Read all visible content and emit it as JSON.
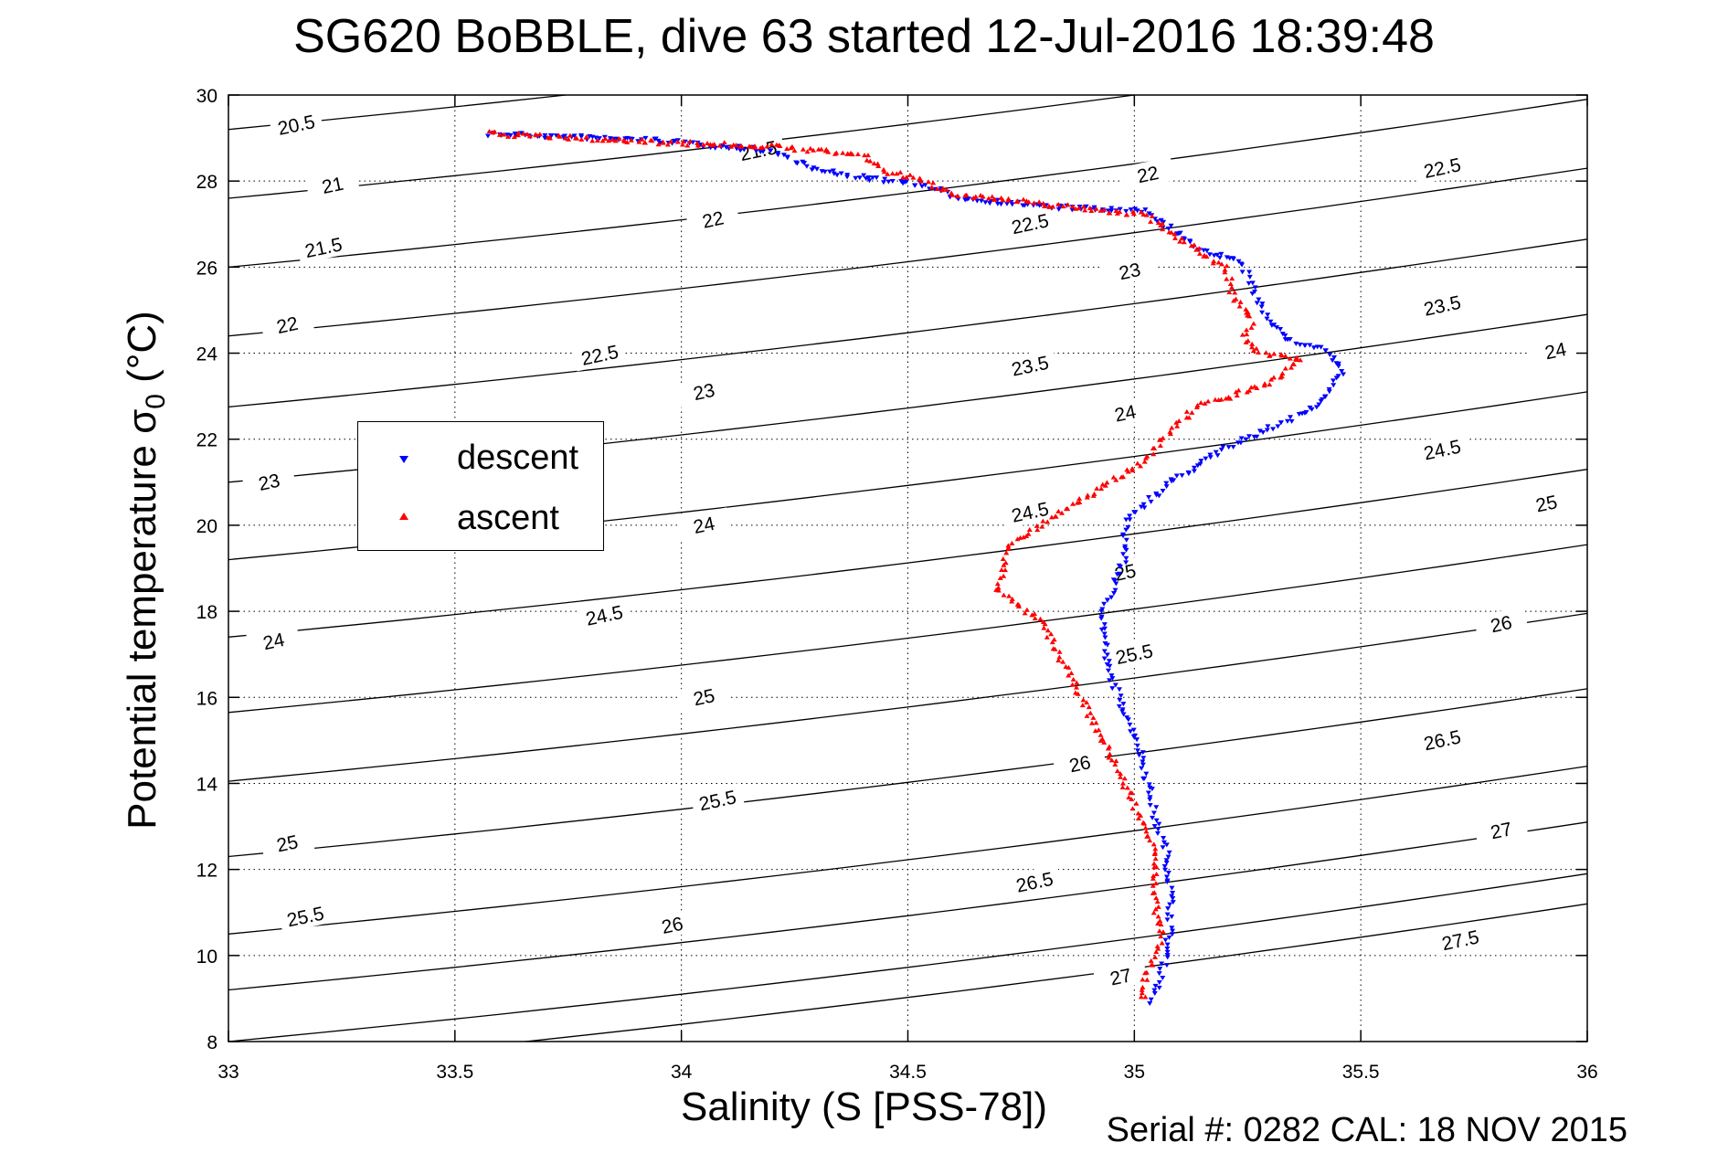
{
  "header": {
    "title": "SG620 BoBBLE, dive 63 started 12-Jul-2016 18:39:48"
  },
  "axes": {
    "xlabel": "Salinity (S [PSS-78])",
    "ylabel_main": "Potential temperature σ",
    "ylabel_sub": "0",
    "ylabel_unit": " (°C)"
  },
  "footer": {
    "serial_cal": "Serial #: 0282  CAL: 18 NOV 2015"
  },
  "legend": {
    "descent": "descent",
    "ascent": "ascent"
  },
  "colors": {
    "descent": "#0000ff",
    "ascent": "#ff0000",
    "contour": "#000000",
    "grid": "#000000"
  },
  "chart_data": {
    "type": "scatter",
    "title": "SG620 BoBBLE, dive 63 started 12-Jul-2016 18:39:48",
    "xlabel": "Salinity (S [PSS-78])",
    "ylabel": "Potential temperature σ0 (°C)",
    "xlim": [
      33,
      36
    ],
    "ylim": [
      8,
      30
    ],
    "xticks": [
      33,
      33.5,
      34,
      34.5,
      35,
      35.5,
      36
    ],
    "yticks": [
      8,
      10,
      12,
      14,
      16,
      18,
      20,
      22,
      24,
      26,
      28,
      30
    ],
    "xtick_labels": [
      "33",
      "33.5",
      "34",
      "34.5",
      "35",
      "35.5",
      "36"
    ],
    "ytick_labels": [
      "8",
      "10",
      "12",
      "14",
      "16",
      "18",
      "20",
      "22",
      "24",
      "26",
      "28",
      "30"
    ],
    "grid": true,
    "legend_position": "middle-left",
    "contours": [
      {
        "label": "20.5",
        "left_y": 29.2
      },
      {
        "label": "21",
        "left_y": 27.6
      },
      {
        "label": "21.5",
        "left_y": 26.0
      },
      {
        "label": "22",
        "left_y": 24.4
      },
      {
        "label": "22.5",
        "left_y": 22.75
      },
      {
        "label": "23",
        "left_y": 21.0
      },
      {
        "label": "23.5",
        "left_y": 19.2
      },
      {
        "label": "24",
        "left_y": 17.4
      },
      {
        "label": "24.5",
        "left_y": 15.65
      },
      {
        "label": "25",
        "left_y": 14.05
      },
      {
        "label": "25.5",
        "left_y": 12.3
      },
      {
        "label": "26",
        "left_y": 10.5
      },
      {
        "label": "26.5",
        "left_y": 9.2
      },
      {
        "label": "27",
        "left_y": 8.0
      },
      {
        "label": "27.5",
        "left_y": 7.3
      }
    ],
    "contour_labels": [
      {
        "text": "20.5",
        "x": 33.15,
        "y": 29.3
      },
      {
        "text": "21",
        "x": 33.23,
        "y": 27.9
      },
      {
        "text": "21.5",
        "x": 33.21,
        "y": 26.45
      },
      {
        "text": "22",
        "x": 33.13,
        "y": 24.65
      },
      {
        "text": "23",
        "x": 33.09,
        "y": 21.0
      },
      {
        "text": "24",
        "x": 33.1,
        "y": 17.3
      },
      {
        "text": "25",
        "x": 33.13,
        "y": 12.6
      },
      {
        "text": "25.5",
        "x": 33.17,
        "y": 10.9
      },
      {
        "text": "21.5",
        "x": 34.17,
        "y": 28.7
      },
      {
        "text": "22",
        "x": 34.07,
        "y": 27.1
      },
      {
        "text": "22.5",
        "x": 33.82,
        "y": 23.95
      },
      {
        "text": "23",
        "x": 34.05,
        "y": 23.1
      },
      {
        "text": "24",
        "x": 34.05,
        "y": 20.0
      },
      {
        "text": "24.5",
        "x": 33.83,
        "y": 17.9
      },
      {
        "text": "25",
        "x": 34.05,
        "y": 16.0
      },
      {
        "text": "25.5",
        "x": 34.08,
        "y": 13.6
      },
      {
        "text": "26",
        "x": 33.98,
        "y": 10.7
      },
      {
        "text": "22",
        "x": 35.03,
        "y": 28.15
      },
      {
        "text": "22.5",
        "x": 34.77,
        "y": 27.0
      },
      {
        "text": "23",
        "x": 34.99,
        "y": 25.9
      },
      {
        "text": "23.5",
        "x": 34.77,
        "y": 23.7
      },
      {
        "text": "24",
        "x": 34.98,
        "y": 22.6
      },
      {
        "text": "24.5",
        "x": 34.77,
        "y": 20.3
      },
      {
        "text": "25",
        "x": 34.98,
        "y": 18.9
      },
      {
        "text": "25.5",
        "x": 35.0,
        "y": 17.0
      },
      {
        "text": "26",
        "x": 34.88,
        "y": 14.45
      },
      {
        "text": "26.5",
        "x": 34.78,
        "y": 11.7
      },
      {
        "text": "27",
        "x": 34.97,
        "y": 9.5
      },
      {
        "text": "22.5",
        "x": 35.68,
        "y": 28.3
      },
      {
        "text": "23.5",
        "x": 35.68,
        "y": 25.1
      },
      {
        "text": "24",
        "x": 35.93,
        "y": 24.05
      },
      {
        "text": "24.5",
        "x": 35.68,
        "y": 21.75
      },
      {
        "text": "25",
        "x": 35.91,
        "y": 20.5
      },
      {
        "text": "26",
        "x": 35.81,
        "y": 17.7
      },
      {
        "text": "26.5",
        "x": 35.68,
        "y": 15.0
      },
      {
        "text": "27",
        "x": 35.81,
        "y": 12.9
      },
      {
        "text": "27.5",
        "x": 35.72,
        "y": 10.35
      }
    ],
    "series": [
      {
        "name": "descent",
        "marker": "triangle-down",
        "color": "#0000ff",
        "path": [
          [
            33.58,
            29.1
          ],
          [
            33.95,
            28.95
          ],
          [
            34.2,
            28.7
          ],
          [
            34.3,
            28.25
          ],
          [
            34.42,
            28.05
          ],
          [
            34.52,
            27.95
          ],
          [
            34.62,
            27.6
          ],
          [
            34.82,
            27.4
          ],
          [
            35.02,
            27.3
          ],
          [
            35.15,
            26.4
          ],
          [
            35.24,
            26.1
          ],
          [
            35.26,
            25.5
          ],
          [
            35.3,
            24.7
          ],
          [
            35.34,
            24.3
          ],
          [
            35.42,
            24.1
          ],
          [
            35.46,
            23.6
          ],
          [
            35.42,
            22.9
          ],
          [
            35.35,
            22.5
          ],
          [
            35.2,
            21.8
          ],
          [
            35.08,
            21.0
          ],
          [
            34.98,
            20.1
          ],
          [
            34.98,
            19.3
          ],
          [
            34.93,
            17.9
          ],
          [
            34.94,
            16.7
          ],
          [
            34.97,
            15.9
          ],
          [
            35.01,
            14.9
          ],
          [
            35.03,
            14.0
          ],
          [
            35.05,
            13.0
          ],
          [
            35.07,
            12.5
          ],
          [
            35.08,
            11.5
          ],
          [
            35.08,
            10.7
          ],
          [
            35.07,
            10.0
          ],
          [
            35.06,
            9.5
          ],
          [
            35.04,
            9.0
          ],
          [
            35.04,
            8.8
          ]
        ]
      },
      {
        "name": "ascent",
        "marker": "triangle-up",
        "color": "#ff0000",
        "path": [
          [
            33.57,
            29.1
          ],
          [
            33.95,
            28.9
          ],
          [
            34.2,
            28.8
          ],
          [
            34.4,
            28.6
          ],
          [
            34.46,
            28.2
          ],
          [
            34.52,
            28.05
          ],
          [
            34.6,
            27.7
          ],
          [
            34.85,
            27.4
          ],
          [
            35.03,
            27.2
          ],
          [
            35.12,
            26.5
          ],
          [
            35.2,
            26.0
          ],
          [
            35.22,
            25.3
          ],
          [
            35.26,
            24.8
          ],
          [
            35.24,
            24.3
          ],
          [
            35.28,
            24.0
          ],
          [
            35.37,
            23.85
          ],
          [
            35.3,
            23.3
          ],
          [
            35.15,
            22.8
          ],
          [
            35.12,
            22.6
          ],
          [
            35.02,
            21.5
          ],
          [
            34.92,
            20.8
          ],
          [
            34.82,
            20.2
          ],
          [
            34.72,
            19.5
          ],
          [
            34.7,
            18.5
          ],
          [
            34.8,
            17.7
          ],
          [
            34.83,
            17.0
          ],
          [
            34.87,
            16.3
          ],
          [
            34.92,
            15.2
          ],
          [
            34.96,
            14.4
          ],
          [
            35.0,
            13.5
          ],
          [
            35.03,
            12.8
          ],
          [
            35.05,
            12.5
          ],
          [
            35.04,
            11.5
          ],
          [
            35.06,
            10.5
          ],
          [
            35.04,
            9.9
          ],
          [
            35.02,
            9.3
          ],
          [
            35.02,
            8.9
          ]
        ]
      }
    ]
  }
}
